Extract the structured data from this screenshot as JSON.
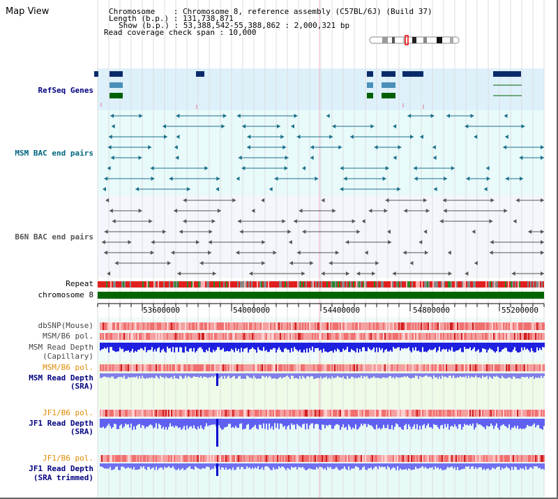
{
  "title": "Map View",
  "info": {
    "chromosome_line": "Chromosome    : Chromosome 8, reference assembly (C57BL/6J) (Build 37)",
    "length_line": "Length (b.p.) : 131,738,871",
    "show_line": "Show (b.p.) : 53,388,542-55,388,862 : 2,000,321 bp",
    "coverage_line": "Read coverage check span : 10,000"
  },
  "tracks": {
    "refseq": "RefSeq Genes",
    "msm_bac": "MSM BAC end pairs",
    "b6n_bac": "B6N BAC end pairs",
    "repeat": "Repeat",
    "chromosome": "chromosome 8",
    "dbsnp": "dbSNP(Mouse)",
    "msm_b6_pol_1": "MSM/B6 pol.",
    "msm_depth_cap_1": "MSM Read Depth",
    "msm_depth_cap_2": "(Capillary)",
    "msm_b6_pol_2": "MSM/B6 pol.",
    "msm_depth_sra_1": "MSM Read Depth",
    "msm_depth_sra_2": "(SRA)",
    "jf1_b6_pol_1": "JF1/B6 pol.",
    "jf1_depth_sra_1": "JF1 Read Depth",
    "jf1_depth_sra_2": "(SRA)",
    "jf1_b6_pol_2": "JF1/B6 pol.",
    "jf1_depth_trim_1": "JF1 Read Depth",
    "jf1_depth_trim_2": "(SRA trimmed)"
  },
  "axis_ticks": [
    "53600000",
    "54000000",
    "54400000",
    "54800000",
    "55200000"
  ],
  "colors": {
    "refseq_bg": "#def1fb",
    "msm_bg": "#e8fafa",
    "b6n_bg": "#f4f6fb",
    "msm_label": "#006680",
    "b6n_label": "#555555",
    "navy_label": "#000080",
    "orange_label": "#e08a00",
    "gene_dark": "#0a2a6a",
    "gene_light": "#4a90b8",
    "gene_green": "#006000"
  }
}
